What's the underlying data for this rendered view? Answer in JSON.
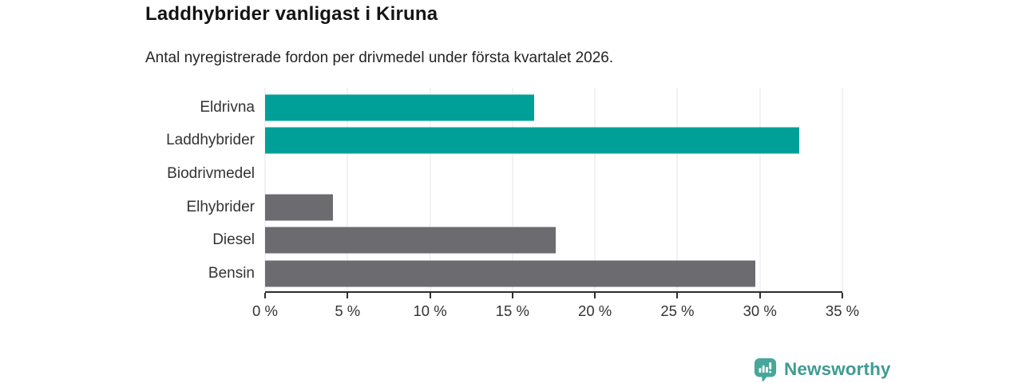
{
  "header": {
    "title": "Laddhybrider vanligast i Kiruna",
    "subtitle": "Antal nyregistrerade fordon per drivmedel under första kvartalet 2026."
  },
  "chart_data": {
    "type": "bar",
    "orientation": "horizontal",
    "title": "Laddhybrider vanligast i Kiruna",
    "subtitle": "Antal nyregistrerade fordon per drivmedel under första kvartalet 2026.",
    "categories": [
      "Eldrivna",
      "Laddhybrider",
      "Biodrivmedel",
      "Elhybrider",
      "Diesel",
      "Bensin"
    ],
    "values": [
      16.3,
      32.4,
      0,
      4.1,
      17.6,
      29.7
    ],
    "unit": "%",
    "bar_colors": [
      "#00a099",
      "#00a099",
      "#6b6b70",
      "#6b6b70",
      "#6b6b70",
      "#6b6b70"
    ],
    "highlight_color": "#00a099",
    "default_color": "#6b6b70",
    "xlim": [
      0,
      35
    ],
    "x_ticks": [
      0,
      5,
      10,
      15,
      20,
      25,
      30,
      35
    ],
    "x_tick_labels": [
      "0 %",
      "5 %",
      "10 %",
      "15 %",
      "20 %",
      "25 %",
      "30 %",
      "35 %"
    ],
    "grid": "vertical-on",
    "gridline_color": "#e4e4e4",
    "legend": "none"
  },
  "footer": {
    "brand": "Newsworthy",
    "brand_color": "#3f9b92",
    "logo_icon_color": "#47a79a",
    "logo_icon": "bar-chart-speech-bubble-icon"
  }
}
